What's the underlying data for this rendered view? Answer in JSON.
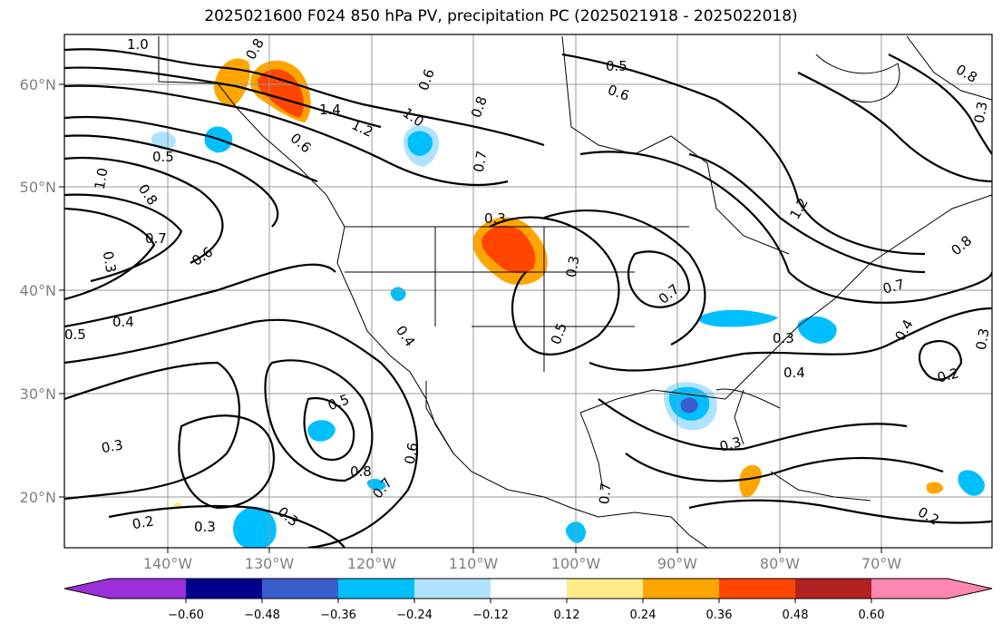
{
  "title": "2025021600 F024 850 hPa PV, precipitation PC (2025021918 - 2025022018)",
  "lat_labels": [
    "60°N",
    "50°N",
    "40°N",
    "30°N",
    "20°N"
  ],
  "lon_labels": [
    "140°W",
    "130°W",
    "120°W",
    "110°W",
    "100°W",
    "90°W",
    "80°W",
    "70°W"
  ],
  "colorbar": {
    "ticks": [
      "−0.60",
      "−0.48",
      "−0.36",
      "−0.24",
      "−0.12",
      "0.12",
      "0.24",
      "0.36",
      "0.48",
      "0.60"
    ],
    "colors": [
      "#9b30d9",
      "#00008b",
      "#3a5fcd",
      "#00bfff",
      "#b0e2ff",
      "#ffffff",
      "#ffeb8a",
      "#ffa500",
      "#ff4500",
      "#b22222",
      "#ff86b0"
    ]
  },
  "contour_labels": [
    "1.0",
    "0.8",
    "0.5",
    "0.6",
    "1.4",
    "1.2",
    "0.6",
    "1.0",
    "0.8",
    "0.7",
    "0.5",
    "1.0",
    "0.8",
    "0.7",
    "0.6",
    "0.3",
    "0.5",
    "0.3",
    "0.7",
    "0.4",
    "0.4",
    "0.5",
    "0.3",
    "0.5",
    "0.8",
    "0.7",
    "0.6",
    "0.3",
    "0.4",
    "0.3",
    "0.4",
    "0.3",
    "0.3",
    "0.2",
    "0.2",
    "0.3",
    "0.7",
    "0.3",
    "0.2",
    "1.2",
    "0.8",
    "0.7",
    "0.3",
    "0.8",
    "0.6"
  ]
}
